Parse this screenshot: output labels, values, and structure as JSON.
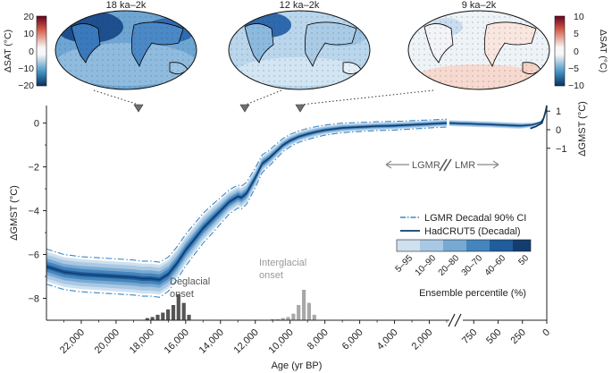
{
  "colors": {
    "band_outer": "#cfe0ef",
    "band_2": "#a9c8e3",
    "band_3": "#78a9d2",
    "band_4": "#4585bd",
    "band_inner": "#1f5d9c",
    "median": "#123d6e",
    "ci_line": "#3b87c4",
    "hadcrut": "#0f3b6b",
    "deglacial_bars": "#555555",
    "interglacial_bars": "#a8a8a8",
    "map_cold": "#2166ac",
    "map_warm": "#c03a35"
  },
  "maps": {
    "panels": [
      {
        "title": "18 ka–2k",
        "tone": "cold-strong"
      },
      {
        "title": "12 ka–2k",
        "tone": "cold-moderate"
      },
      {
        "title": "9 ka–2k",
        "tone": "warm-slight"
      }
    ],
    "colorbar_left": {
      "label": "ΔSAT (°C)",
      "ticks": [
        "20",
        "10",
        "0",
        "−10",
        "−20"
      ],
      "range": [
        -20,
        20
      ]
    },
    "colorbar_right": {
      "label": "ΔSAT (°C)",
      "ticks": [
        "10",
        "5",
        "0",
        "−5",
        "−10"
      ],
      "range": [
        -10,
        10
      ]
    }
  },
  "chart_data": {
    "type": "line",
    "xlabel": "Age (yr BP)",
    "ylabel": "ΔGMST (°C)",
    "ylabel_right": "ΔGMST (°C)",
    "ylim": [
      -9,
      0.8
    ],
    "ylim_right": [
      -1.3,
      1.3
    ],
    "y_ticks": [
      "0",
      "−2",
      "−4",
      "−6",
      "−8"
    ],
    "y_ticks_right": [
      "1",
      "0",
      "−1"
    ],
    "x_segment_lgmr": {
      "range": [
        24000,
        1000
      ],
      "ticks": [
        "22,000",
        "20,000",
        "18,000",
        "16,000",
        "14,000",
        "12,000",
        "10,000",
        "8,000",
        "6,000",
        "4,000",
        "2,000"
      ]
    },
    "x_segment_lmr": {
      "range": [
        1000,
        0
      ],
      "ticks": [
        "750",
        "500",
        "250",
        "0"
      ]
    },
    "segment_labels": {
      "lgmr": "LGMR",
      "lmr": "LMR"
    },
    "legend": {
      "ci": "LGMR Decadal 90% CI",
      "hadcrut": "HadCRUT5 (Decadal)"
    },
    "percentile_legend": {
      "title": "Ensemble percentile (%)",
      "bins": [
        "5–95",
        "10–90",
        "20–80",
        "30–70",
        "40–60",
        "50"
      ]
    },
    "annotations": {
      "deglacial": [
        "Deglacial",
        "onset"
      ],
      "interglacial": [
        "Interglacial",
        "onset"
      ]
    },
    "lgmr_median": {
      "age": [
        24000,
        23000,
        22000,
        21000,
        20000,
        19000,
        18500,
        18000,
        17500,
        17000,
        16500,
        16000,
        15500,
        15000,
        14500,
        14000,
        13500,
        13000,
        12800,
        12500,
        12000,
        11600,
        11200,
        10800,
        10400,
        10000,
        9500,
        9000,
        8500,
        8000,
        7500,
        7000,
        6500,
        6000,
        5500,
        5000,
        4500,
        4000,
        3500,
        3000,
        2500,
        2000,
        1500,
        1000
      ],
      "value": [
        -6.55,
        -6.8,
        -6.9,
        -6.95,
        -7.0,
        -7.05,
        -7.1,
        -7.1,
        -7.15,
        -6.9,
        -6.4,
        -5.8,
        -5.3,
        -4.8,
        -4.4,
        -4.0,
        -3.6,
        -3.35,
        -3.4,
        -3.2,
        -2.5,
        -1.85,
        -1.6,
        -1.3,
        -1.0,
        -0.8,
        -0.62,
        -0.5,
        -0.4,
        -0.32,
        -0.27,
        -0.22,
        -0.2,
        -0.18,
        -0.16,
        -0.14,
        -0.13,
        -0.12,
        -0.1,
        -0.08,
        -0.06,
        -0.04,
        -0.02,
        0.0
      ],
      "ci_half_width": [
        0.8,
        0.8,
        0.8,
        0.8,
        0.8,
        0.8,
        0.8,
        0.8,
        0.8,
        0.78,
        0.75,
        0.72,
        0.7,
        0.68,
        0.65,
        0.6,
        0.55,
        0.52,
        0.52,
        0.5,
        0.45,
        0.4,
        0.36,
        0.33,
        0.3,
        0.28,
        0.26,
        0.25,
        0.24,
        0.23,
        0.22,
        0.22,
        0.21,
        0.21,
        0.2,
        0.2,
        0.2,
        0.2,
        0.19,
        0.19,
        0.19,
        0.18,
        0.18,
        0.18
      ]
    },
    "lmr_series": {
      "age": [
        1000,
        900,
        800,
        700,
        600,
        500,
        400,
        300,
        250,
        200,
        150,
        100,
        60,
        30,
        0
      ],
      "value": [
        0.0,
        -0.02,
        -0.03,
        -0.05,
        -0.06,
        -0.08,
        -0.1,
        -0.12,
        -0.12,
        -0.1,
        -0.08,
        -0.02,
        0.05,
        0.25,
        0.8
      ],
      "half_width": [
        0.14,
        0.14,
        0.14,
        0.14,
        0.14,
        0.14,
        0.14,
        0.14,
        0.13,
        0.12,
        0.1,
        0.08,
        0.06,
        0.05,
        0.05
      ]
    },
    "hadcrut5": {
      "age": [
        170,
        140,
        110,
        90,
        70,
        50,
        30,
        10,
        0
      ],
      "value": [
        -0.25,
        -0.2,
        -0.15,
        -0.1,
        -0.05,
        0.0,
        0.25,
        0.55,
        0.8
      ]
    },
    "deglacial_histogram": {
      "age_bins": [
        18200,
        17900,
        17600,
        17300,
        17000,
        16700,
        16400,
        16100,
        15800
      ],
      "counts": [
        2,
        3,
        5,
        7,
        10,
        14,
        24,
        16,
        5
      ]
    },
    "interglacial_histogram": {
      "age_bins": [
        11000,
        10700,
        10400,
        10100,
        9800,
        9500,
        9200,
        8900,
        8600
      ],
      "counts": [
        1,
        1,
        2,
        3,
        6,
        14,
        28,
        16,
        5
      ]
    }
  }
}
